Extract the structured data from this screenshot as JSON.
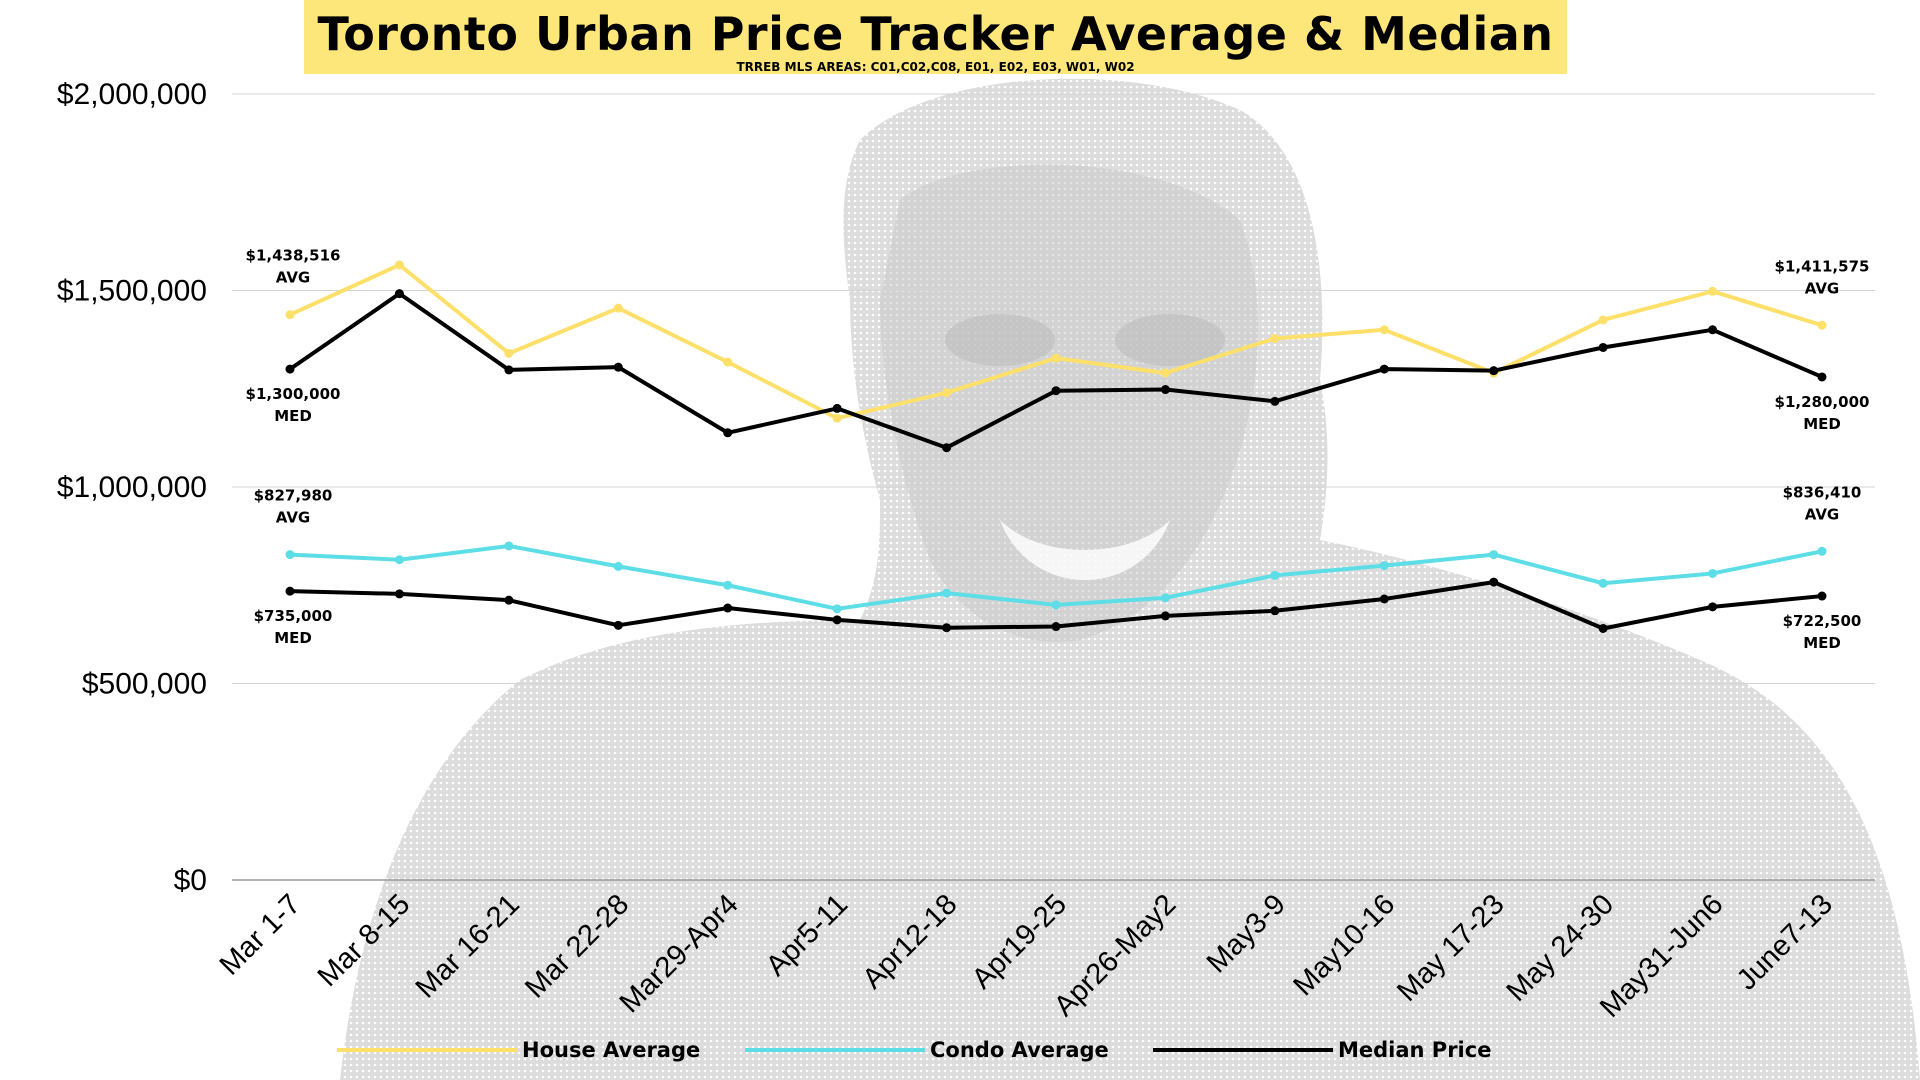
{
  "header": {
    "title": "Toronto Urban Price Tracker Average & Median",
    "subtitle": "TRREB MLS AREAS: C01,C02,C08, E01, E02, E03, W01, W02"
  },
  "chart_data": {
    "type": "line",
    "x": [
      "Mar 1-7",
      "Mar 8-15",
      "Mar 16-21",
      "Mar 22-28",
      "Mar29-Apr4",
      "Apr5-11",
      "Apr12-18",
      "Apr19-25",
      "Apr26-May2",
      "May3-9",
      "May10-16",
      "May 17-23",
      "May 24-30",
      "May31-Jun6",
      "June7-13"
    ],
    "y_ticks": [
      {
        "value": 0,
        "label": "$0"
      },
      {
        "value": 500000,
        "label": "$500,000"
      },
      {
        "value": 1000000,
        "label": "$1,000,000"
      },
      {
        "value": 1500000,
        "label": "$1,500,000"
      },
      {
        "value": 2000000,
        "label": "$2,000,000"
      }
    ],
    "ylim": [
      0,
      2000000
    ],
    "grid": true,
    "legend_position": "bottom",
    "series": [
      {
        "name": "House Average",
        "color": "#fde06a",
        "values": [
          1438516,
          1565000,
          1340000,
          1455000,
          1318000,
          1175000,
          1240000,
          1328000,
          1290000,
          1378000,
          1400000,
          1290000,
          1425000,
          1498000,
          1411575
        ]
      },
      {
        "name": "Condo Average",
        "color": "#5ddde6",
        "values": [
          827980,
          815000,
          850000,
          798000,
          750000,
          690000,
          730000,
          700000,
          718000,
          775000,
          800000,
          828000,
          755000,
          780000,
          836410
        ]
      },
      {
        "name": "Median Price",
        "color": "#000000",
        "values": [
          1300000,
          1492000,
          1298000,
          1305000,
          1138000,
          1200000,
          1100000,
          1245000,
          1248000,
          1218000,
          1300000,
          1296000,
          1355000,
          1400000,
          1280000
        ]
      },
      {
        "name": "",
        "color": "#000000",
        "values": [
          735000,
          728000,
          712000,
          648000,
          692000,
          662000,
          642000,
          645000,
          672000,
          685000,
          715000,
          758000,
          640000,
          695000,
          722500
        ]
      }
    ],
    "annotations": [
      {
        "x_index": 0,
        "value": 1438516,
        "lines": [
          "$1,438,516",
          "AVG"
        ],
        "place": "above"
      },
      {
        "x_index": 0,
        "value": 1300000,
        "lines": [
          "$1,300,000",
          "MED"
        ],
        "place": "below"
      },
      {
        "x_index": 0,
        "value": 827980,
        "lines": [
          "$827,980",
          "AVG"
        ],
        "place": "above"
      },
      {
        "x_index": 0,
        "value": 735000,
        "lines": [
          "$735,000",
          "MED"
        ],
        "place": "below"
      },
      {
        "x_index": 14,
        "value": 1411575,
        "lines": [
          "$1,411,575",
          "AVG"
        ],
        "place": "above"
      },
      {
        "x_index": 14,
        "value": 1280000,
        "lines": [
          "$1,280,000",
          "MED"
        ],
        "place": "below"
      },
      {
        "x_index": 14,
        "value": 836410,
        "lines": [
          "$836,410",
          "AVG"
        ],
        "place": "above"
      },
      {
        "x_index": 14,
        "value": 722500,
        "lines": [
          "$722,500",
          "MED"
        ],
        "place": "below"
      }
    ]
  }
}
